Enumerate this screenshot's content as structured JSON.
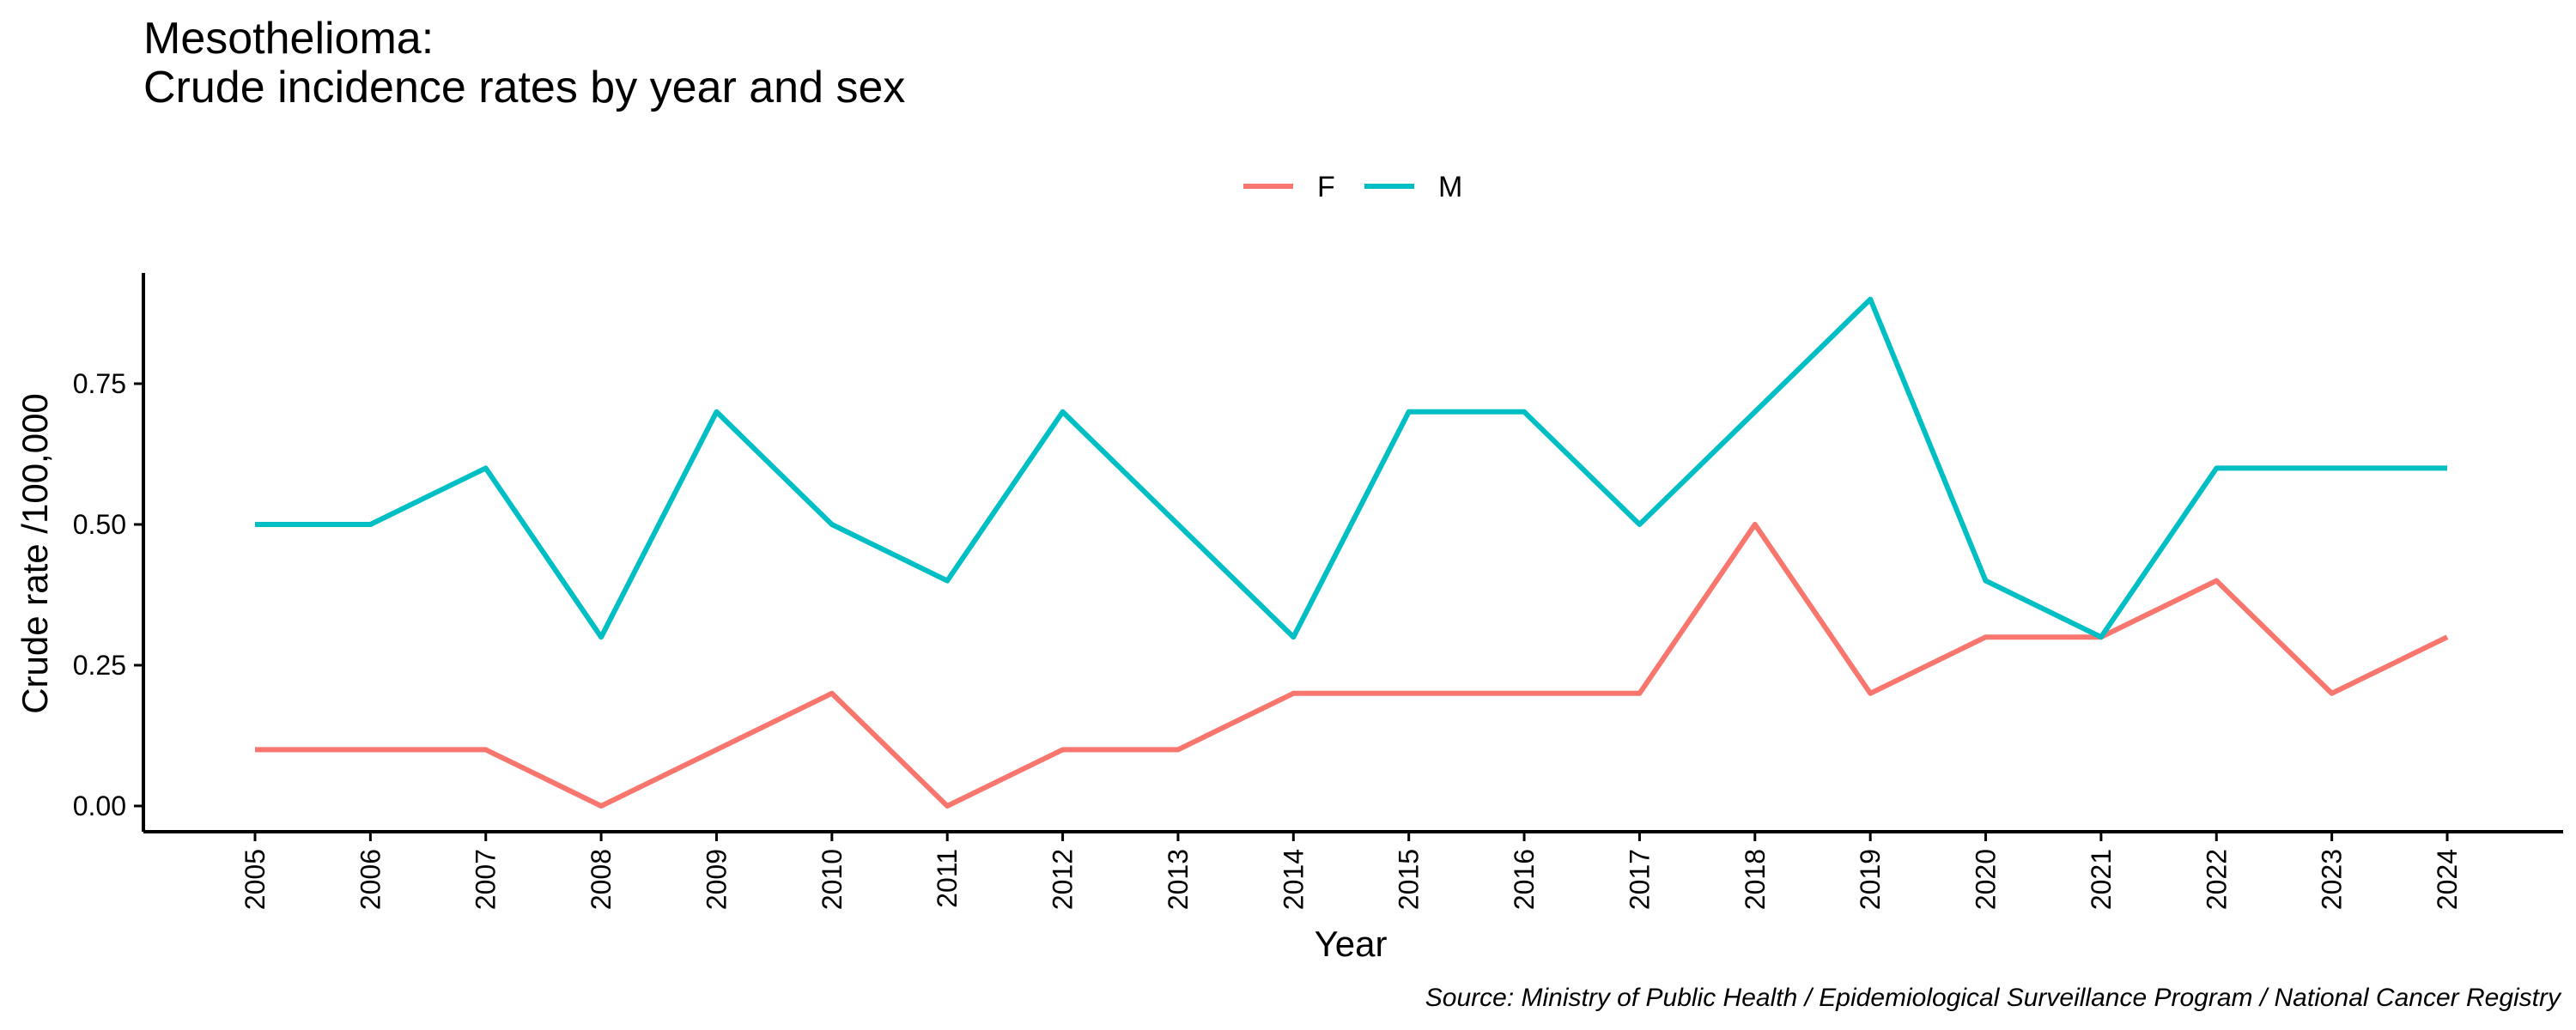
{
  "chart_data": {
    "type": "line",
    "title_line1": "Mesothelioma:",
    "title_line2": "Crude incidence rates by year and sex",
    "xlabel": "Year",
    "ylabel": "Crude rate /100,000",
    "source": "Source: Ministry of Public Health / Epidemiological Surveillance Program / National Cancer Registry",
    "categories": [
      "2005",
      "2006",
      "2007",
      "2008",
      "2009",
      "2010",
      "2011",
      "2012",
      "2013",
      "2014",
      "2015",
      "2016",
      "2017",
      "2018",
      "2019",
      "2020",
      "2021",
      "2022",
      "2023",
      "2024"
    ],
    "ylim": [
      0,
      0.9
    ],
    "yticks": [
      0,
      0.25,
      0.5,
      0.75
    ],
    "ytick_labels": [
      "0.00",
      "0.25",
      "0.50",
      "0.75"
    ],
    "legend_position": "top",
    "grid": false,
    "series": [
      {
        "name": "F",
        "color": "#F8766D",
        "values": [
          0.1,
          0.1,
          0.1,
          0.0,
          0.1,
          0.2,
          0.0,
          0.1,
          0.1,
          0.2,
          0.2,
          0.2,
          0.2,
          0.5,
          0.2,
          0.3,
          0.3,
          0.4,
          0.2,
          0.3
        ]
      },
      {
        "name": "M",
        "color": "#00BFC4",
        "values": [
          0.5,
          0.5,
          0.6,
          0.3,
          0.7,
          0.5,
          0.4,
          0.7,
          0.5,
          0.3,
          0.7,
          0.7,
          0.5,
          0.7,
          0.9,
          0.4,
          0.3,
          0.6,
          0.6,
          0.6
        ]
      }
    ]
  }
}
